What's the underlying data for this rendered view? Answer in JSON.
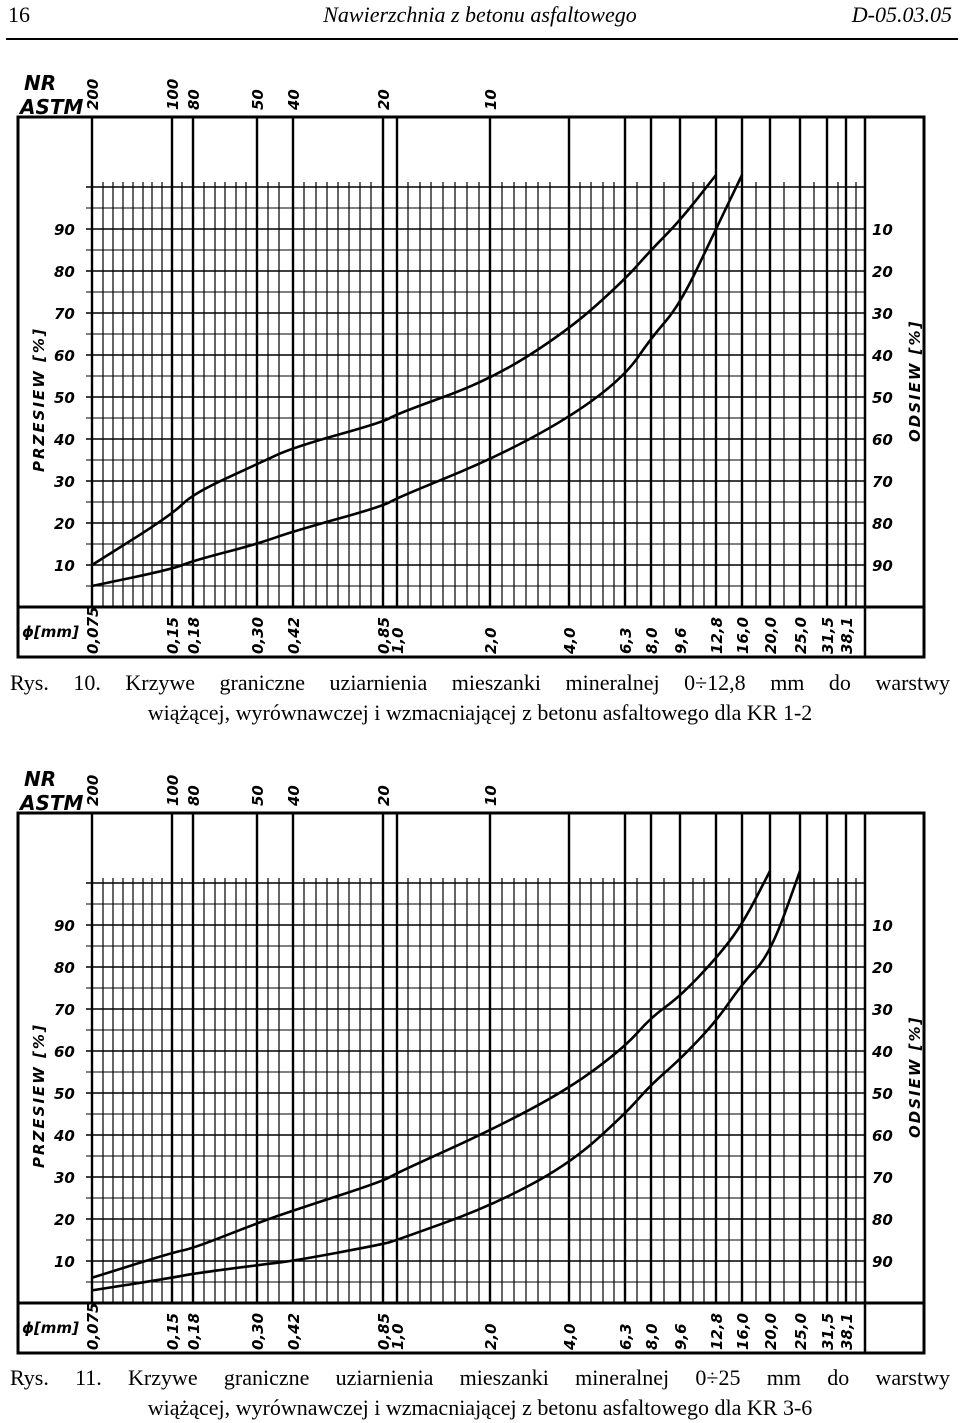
{
  "header": {
    "page_number": "16",
    "title": "Nawierzchnia z betonu asfaltowego",
    "code": "D-05.03.05"
  },
  "chart_data": [
    {
      "type": "line",
      "nr_label": "NR",
      "astm_label": "ASTM",
      "left_axis_label": "PRZESIEW [%]",
      "right_axis_label": "ODSIEW [%]",
      "xlabel": "ϕ[mm]",
      "astm_ticks": [
        "200",
        "100",
        "80",
        "50",
        "40",
        "20",
        "10"
      ],
      "x_ticks": [
        "0,075",
        "0,15",
        "0,18",
        "0,30",
        "0,42",
        "0,85",
        "1,0",
        "2,0",
        "4,0",
        "6,3",
        "8,0",
        "9,6",
        "12,8",
        "16,0",
        "20,0",
        "25,0",
        "31,5",
        "38,1"
      ],
      "y_ticks_left": [
        "10",
        "20",
        "30",
        "40",
        "50",
        "60",
        "70",
        "80",
        "90"
      ],
      "y_ticks_right": [
        "90",
        "80",
        "70",
        "60",
        "50",
        "40",
        "30",
        "20",
        "10"
      ],
      "ylim": [
        0,
        100
      ],
      "series": [
        {
          "x": [
            0.075,
            0.15,
            0.18,
            0.3,
            0.42,
            0.85,
            1.0,
            2.0,
            4.0,
            6.3,
            8.0,
            9.6,
            12.8
          ],
          "values": [
            10,
            22,
            27,
            34,
            38,
            44,
            46,
            54,
            66,
            78,
            85,
            92,
            100
          ]
        },
        {
          "x": [
            0.075,
            0.15,
            0.18,
            0.3,
            0.42,
            0.85,
            1.0,
            2.0,
            4.0,
            6.3,
            8.0,
            9.6,
            12.8,
            16.0
          ],
          "values": [
            5,
            9,
            11,
            15,
            18,
            24,
            26,
            35,
            45,
            55,
            64,
            72,
            90,
            100
          ]
        }
      ]
    },
    {
      "type": "line",
      "nr_label": "NR",
      "astm_label": "ASTM",
      "left_axis_label": "PRZESIEW [%]",
      "right_axis_label": "ODSIEW [%]",
      "xlabel": "ϕ[mm]",
      "astm_ticks": [
        "200",
        "100",
        "80",
        "50",
        "40",
        "20",
        "10"
      ],
      "x_ticks": [
        "0,075",
        "0,15",
        "0,18",
        "0,30",
        "0,42",
        "0,85",
        "1,0",
        "2,0",
        "4,0",
        "6,3",
        "8,0",
        "9,6",
        "12,8",
        "16,0",
        "20,0",
        "25,0",
        "31,5",
        "38,1"
      ],
      "y_ticks_left": [
        "10",
        "20",
        "30",
        "40",
        "50",
        "60",
        "70",
        "80",
        "90"
      ],
      "y_ticks_right": [
        "90",
        "80",
        "70",
        "60",
        "50",
        "40",
        "30",
        "20",
        "10"
      ],
      "ylim": [
        0,
        100
      ],
      "series": [
        {
          "x": [
            0.075,
            0.15,
            0.18,
            0.3,
            0.42,
            0.85,
            1.0,
            2.0,
            4.0,
            6.3,
            8.0,
            9.6,
            12.8,
            16.0,
            20.0
          ],
          "values": [
            6,
            12,
            13,
            19,
            22,
            29,
            31,
            41,
            51,
            61,
            68,
            73,
            82,
            90,
            100
          ]
        },
        {
          "x": [
            0.075,
            0.15,
            0.18,
            0.3,
            0.42,
            0.85,
            1.0,
            2.0,
            4.0,
            6.3,
            8.0,
            9.6,
            12.8,
            16.0,
            20.0,
            25.0
          ],
          "values": [
            3,
            6,
            7,
            9,
            10,
            14,
            15,
            23,
            33,
            45,
            52,
            58,
            67,
            76,
            83,
            100
          ]
        }
      ]
    }
  ],
  "captions": [
    {
      "line1": "Rys.  10.  Krzywe  graniczne  uziarnienia  mieszanki  mineralnej  0÷12,8  mm  do  warstwy",
      "line2": "wiążącej, wyrównawczej i wzmacniającej z betonu asfaltowego dla KR 1-2"
    },
    {
      "line1": "Rys.  11.  Krzywe  graniczne  uziarnienia  mieszanki  mineralnej  0÷25  mm  do  warstwy",
      "line2": "wiążącej, wyrównawczej i wzmacniającej z betonu asfaltowego dla KR 3-6"
    }
  ]
}
